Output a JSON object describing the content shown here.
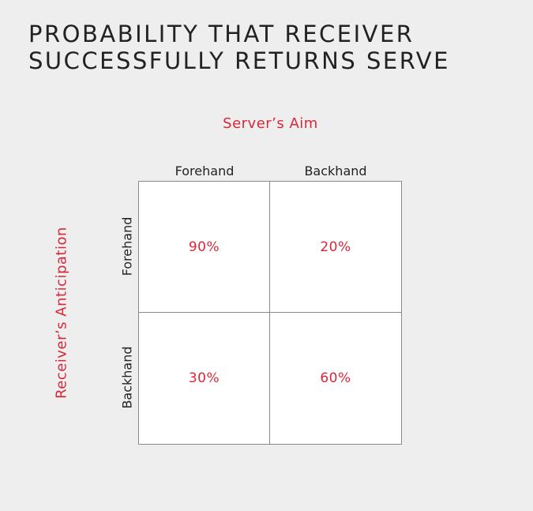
{
  "title": {
    "line1": "PROBABILITY THAT RECEIVER",
    "line2": "SUCCESSFULLY RETURNS SERVE"
  },
  "top_axis_label": "Server’s Aim",
  "side_axis_label": "Receiver’s Anticipation",
  "columns": [
    "Forehand",
    "Backhand"
  ],
  "rows": [
    "Forehand",
    "Backhand"
  ],
  "cells": [
    [
      "90%",
      "20%"
    ],
    [
      "30%",
      "60%"
    ]
  ],
  "colors": {
    "accent": "#d7283a",
    "background": "#eeeeee",
    "grid_fill": "#ffffff",
    "text": "#222222"
  }
}
